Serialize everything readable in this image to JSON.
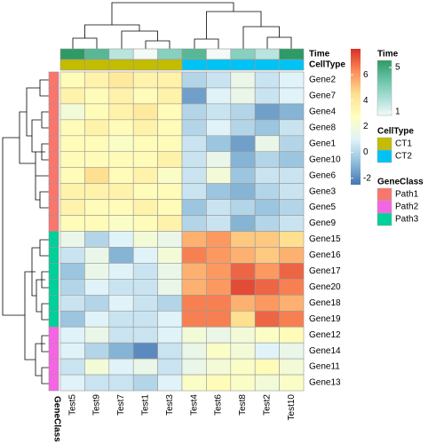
{
  "chart_data": {
    "type": "heatmap",
    "rows": [
      "Gene2",
      "Gene7",
      "Gene4",
      "Gene8",
      "Gene1",
      "Gene10",
      "Gene6",
      "Gene3",
      "Gene5",
      "Gene9",
      "Gene15",
      "Gene16",
      "Gene17",
      "Gene20",
      "Gene18",
      "Gene19",
      "Gene12",
      "Gene14",
      "Gene11",
      "Gene13"
    ],
    "columns": [
      "Test5",
      "Test9",
      "Test7",
      "Test1",
      "Test3",
      "Test4",
      "Test6",
      "Test8",
      "Test2",
      "Test10"
    ],
    "values": [
      [
        3.0,
        3.5,
        4.0,
        3.5,
        3.5,
        0.0,
        0.5,
        1.5,
        0.5,
        1.0
      ],
      [
        3.5,
        3.0,
        3.5,
        3.0,
        3.5,
        -1.5,
        1.0,
        1.5,
        0.5,
        1.0
      ],
      [
        2.0,
        3.0,
        3.5,
        4.0,
        3.0,
        0.0,
        0.5,
        0.0,
        -1.5,
        -1.0
      ],
      [
        3.0,
        3.5,
        3.0,
        3.5,
        3.0,
        0.0,
        1.0,
        0.0,
        -0.5,
        0.5
      ],
      [
        3.0,
        3.0,
        2.5,
        3.0,
        3.0,
        0.5,
        -0.5,
        -1.5,
        1.5,
        0.0
      ],
      [
        3.0,
        3.0,
        3.0,
        3.0,
        3.5,
        0.5,
        1.5,
        -1.0,
        0.0,
        -0.5
      ],
      [
        3.0,
        4.5,
        3.0,
        3.5,
        2.5,
        0.5,
        2.0,
        -0.5,
        0.5,
        0.5
      ],
      [
        3.5,
        3.5,
        3.5,
        3.0,
        3.0,
        0.5,
        -0.5,
        -1.0,
        0.0,
        0.5
      ],
      [
        3.5,
        3.0,
        3.0,
        3.5,
        3.0,
        -0.5,
        0.5,
        0.0,
        -0.5,
        0.0
      ],
      [
        3.0,
        3.0,
        2.5,
        3.0,
        3.5,
        0.0,
        0.5,
        -1.0,
        0.0,
        0.5
      ],
      [
        1.5,
        0.0,
        1.0,
        2.0,
        1.5,
        5.5,
        6.0,
        5.0,
        5.0,
        4.5
      ],
      [
        0.5,
        1.5,
        -1.0,
        1.0,
        2.0,
        6.5,
        6.0,
        5.5,
        5.0,
        5.5
      ],
      [
        -0.5,
        1.5,
        1.0,
        0.5,
        1.5,
        5.5,
        6.0,
        7.0,
        6.0,
        7.0
      ],
      [
        0.0,
        1.0,
        0.5,
        0.5,
        1.5,
        5.5,
        6.0,
        7.5,
        7.0,
        6.5
      ],
      [
        0.5,
        0.0,
        1.0,
        0.5,
        0.0,
        6.5,
        6.5,
        5.5,
        6.0,
        5.5
      ],
      [
        -0.5,
        1.0,
        0.5,
        0.5,
        1.0,
        6.5,
        6.5,
        4.5,
        7.0,
        6.5
      ],
      [
        1.0,
        1.5,
        0.5,
        0.5,
        1.0,
        2.0,
        1.5,
        2.0,
        2.5,
        3.0
      ],
      [
        1.0,
        0.0,
        -1.0,
        -2.0,
        0.5,
        1.5,
        2.5,
        2.0,
        1.0,
        1.5
      ],
      [
        0.5,
        2.0,
        1.0,
        1.5,
        0.5,
        1.5,
        2.0,
        2.5,
        3.0,
        2.0
      ],
      [
        1.0,
        0.5,
        0.5,
        0.0,
        1.0,
        2.5,
        3.0,
        2.5,
        2.0,
        2.5
      ]
    ],
    "colorbar": {
      "lim": [
        -2.5,
        8
      ],
      "ticks": [
        -2,
        0,
        2,
        4,
        6
      ],
      "colors": [
        "#4575B4",
        "#91BFDB",
        "#E0F3F8",
        "#FFFFBF",
        "#FEE090",
        "#FC8D59",
        "#D73027"
      ]
    },
    "col_annotations": [
      {
        "name": "Time",
        "values": [
          5,
          4,
          2,
          1,
          3,
          4,
          1,
          3,
          2,
          5
        ],
        "lim": [
          1,
          5
        ],
        "ticks": [
          5,
          1
        ],
        "colors": [
          "#F2F9F7",
          "#A7DDD6",
          "#66C2A4",
          "#2E9A66"
        ]
      },
      {
        "name": "CellType",
        "values": [
          "CT1",
          "CT1",
          "CT1",
          "CT1",
          "CT1",
          "CT2",
          "CT2",
          "CT2",
          "CT2",
          "CT2"
        ],
        "levels": [
          "CT1",
          "CT2"
        ],
        "colors": [
          "#C3BC00",
          "#00C3F5"
        ]
      }
    ],
    "row_annotations": [
      {
        "name": "GeneClass",
        "values": [
          "Path1",
          "Path1",
          "Path1",
          "Path1",
          "Path1",
          "Path1",
          "Path1",
          "Path1",
          "Path1",
          "Path1",
          "Path3",
          "Path3",
          "Path3",
          "Path3",
          "Path3",
          "Path3",
          "Path2",
          "Path2",
          "Path2",
          "Path2"
        ],
        "levels": [
          "Path1",
          "Path2",
          "Path3"
        ],
        "colors": [
          "#F8766D",
          "#F564E3",
          "#00D09A"
        ]
      }
    ]
  }
}
